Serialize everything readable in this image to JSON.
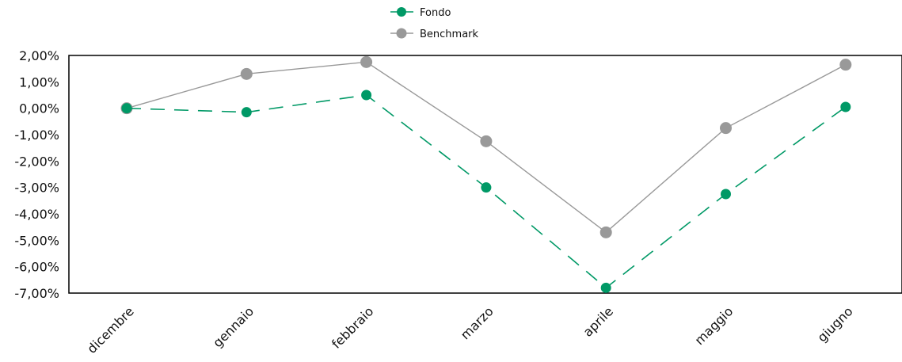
{
  "chart_data": {
    "type": "line",
    "categories": [
      "dicembre",
      "gennaio",
      "febbraio",
      "marzo",
      "aprile",
      "maggio",
      "giugno"
    ],
    "series": [
      {
        "name": "Fondo",
        "values": [
          0.0,
          -0.15,
          0.5,
          -3.0,
          -6.8,
          -3.25,
          0.05
        ],
        "color": "#009966",
        "line_style": "dashed"
      },
      {
        "name": "Benchmark",
        "values": [
          0.0,
          1.3,
          1.75,
          -1.25,
          -4.7,
          -0.75,
          1.65
        ],
        "color": "#999999",
        "line_style": "solid"
      }
    ],
    "yticks": [
      "2,00%",
      "1,00%",
      "0,00%",
      "-1,00%",
      "-2,00%",
      "-3,00%",
      "-4,00%",
      "-5,00%",
      "-6,00%",
      "-7,00%"
    ],
    "ylim": [
      -7,
      2
    ],
    "legend_position": "top-center",
    "grid": false,
    "title": "",
    "xlabel": "",
    "ylabel": ""
  }
}
